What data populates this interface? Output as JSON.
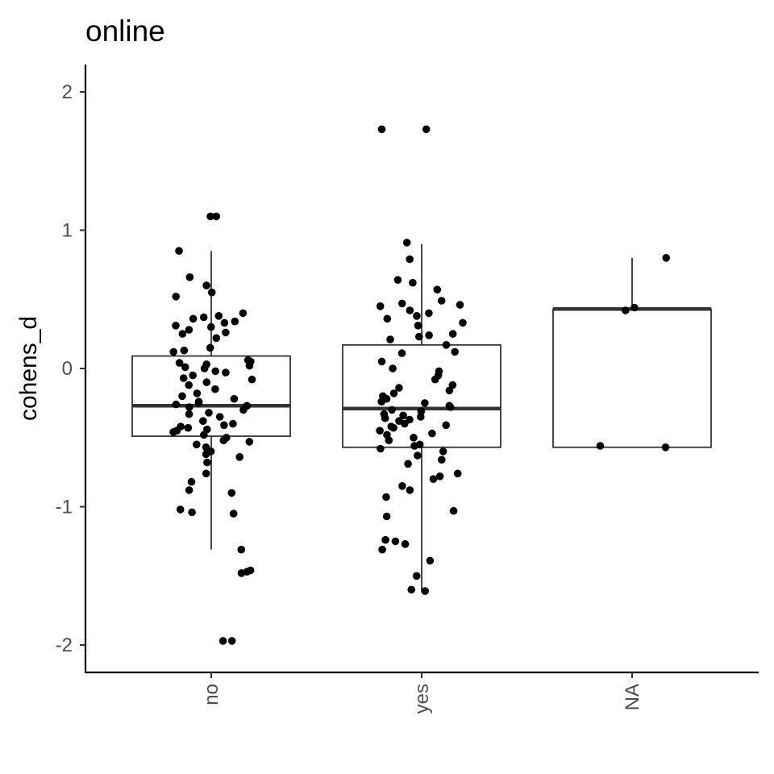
{
  "chart_data": {
    "type": "boxplot",
    "title": "online",
    "xlabel": "",
    "ylabel": "cohens_d",
    "categories": [
      "no",
      "yes",
      "NA"
    ],
    "y_ticks": [
      "-2",
      "-1",
      "0",
      "1",
      "2"
    ],
    "ylim": [
      -2.2,
      2.2
    ],
    "grid": false,
    "boxes": [
      {
        "category": "no",
        "whisker_low": -1.31,
        "q1": -0.49,
        "median": -0.27,
        "q3": 0.09,
        "whisker_high": 0.85
      },
      {
        "category": "yes",
        "whisker_low": -1.61,
        "q1": -0.57,
        "median": -0.29,
        "q3": 0.17,
        "whisker_high": 0.9
      },
      {
        "category": "NA",
        "whisker_low": -0.57,
        "q1": -0.57,
        "median": 0.43,
        "q3": 0.43,
        "whisker_high": 0.8
      }
    ],
    "points": [
      {
        "category": "no",
        "values": [
          1.1,
          1.1,
          0.85,
          0.66,
          0.6,
          0.55,
          0.52,
          0.4,
          0.38,
          0.37,
          0.36,
          0.34,
          0.33,
          0.31,
          0.3,
          0.28,
          0.26,
          0.25,
          0.22,
          0.15,
          0.13,
          0.12,
          0.06,
          0.05,
          0.04,
          0.03,
          0.02,
          0.01,
          0.0,
          -0.02,
          -0.03,
          -0.05,
          -0.07,
          -0.08,
          -0.1,
          -0.12,
          -0.15,
          -0.18,
          -0.2,
          -0.22,
          -0.24,
          -0.25,
          -0.26,
          -0.27,
          -0.28,
          -0.3,
          -0.32,
          -0.33,
          -0.35,
          -0.38,
          -0.4,
          -0.41,
          -0.42,
          -0.43,
          -0.44,
          -0.45,
          -0.46,
          -0.48,
          -0.5,
          -0.52,
          -0.53,
          -0.55,
          -0.57,
          -0.6,
          -0.62,
          -0.64,
          -0.68,
          -0.76,
          -0.82,
          -0.88,
          -0.9,
          -1.02,
          -1.04,
          -1.05,
          -1.31,
          -1.46,
          -1.47,
          -1.48,
          -1.97,
          -1.97
        ]
      },
      {
        "category": "yes",
        "values": [
          1.73,
          1.73,
          0.91,
          0.79,
          0.64,
          0.62,
          0.57,
          0.49,
          0.47,
          0.46,
          0.45,
          0.42,
          0.4,
          0.38,
          0.36,
          0.33,
          0.31,
          0.25,
          0.24,
          0.23,
          0.21,
          0.17,
          0.12,
          0.11,
          0.05,
          0.0,
          -0.02,
          -0.05,
          -0.08,
          -0.12,
          -0.14,
          -0.16,
          -0.18,
          -0.2,
          -0.22,
          -0.24,
          -0.25,
          -0.27,
          -0.28,
          -0.3,
          -0.31,
          -0.33,
          -0.34,
          -0.35,
          -0.36,
          -0.37,
          -0.38,
          -0.4,
          -0.41,
          -0.42,
          -0.43,
          -0.45,
          -0.47,
          -0.48,
          -0.5,
          -0.52,
          -0.55,
          -0.56,
          -0.58,
          -0.6,
          -0.63,
          -0.66,
          -0.69,
          -0.76,
          -0.78,
          -0.8,
          -0.85,
          -0.88,
          -0.93,
          -1.03,
          -1.07,
          -1.24,
          -1.25,
          -1.27,
          -1.31,
          -1.39,
          -1.5,
          -1.6,
          -1.61
        ]
      },
      {
        "category": "NA",
        "values": [
          0.8,
          0.44,
          0.42,
          -0.56,
          -0.57
        ]
      }
    ]
  }
}
